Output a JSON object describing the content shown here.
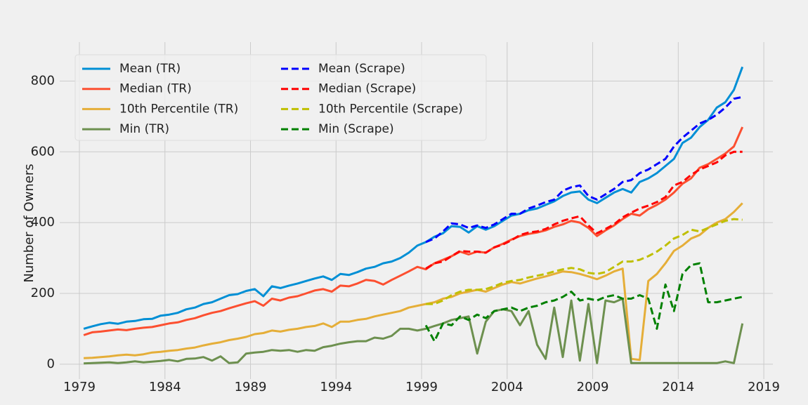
{
  "chart_data": {
    "type": "line",
    "ylabel": "Number of Owners",
    "x": [
      1979.25,
      1979.75,
      1980.25,
      1980.75,
      1981.25,
      1981.75,
      1982.25,
      1982.75,
      1983.25,
      1983.75,
      1984.25,
      1984.75,
      1985.25,
      1985.75,
      1986.25,
      1986.75,
      1987.25,
      1987.75,
      1988.25,
      1988.75,
      1989.25,
      1989.75,
      1990.25,
      1990.75,
      1991.25,
      1991.75,
      1992.25,
      1992.75,
      1993.25,
      1993.75,
      1994.25,
      1994.75,
      1995.25,
      1995.75,
      1996.25,
      1996.75,
      1997.25,
      1997.75,
      1998.25,
      1998.75,
      1999.25,
      1999.75,
      2000.25,
      2000.75,
      2001.25,
      2001.75,
      2002.25,
      2002.75,
      2003.25,
      2003.75,
      2004.25,
      2004.75,
      2005.25,
      2005.75,
      2006.25,
      2006.75,
      2007.25,
      2007.75,
      2008.25,
      2008.75,
      2009.25,
      2009.75,
      2010.25,
      2010.75,
      2011.25,
      2011.75,
      2012.25,
      2012.75,
      2013.25,
      2013.75,
      2014.25,
      2014.75,
      2015.25,
      2015.75,
      2016.25,
      2016.75,
      2017.25,
      2017.75
    ],
    "series": [
      {
        "name": "Mean (TR)",
        "color": "#008fd5",
        "style": "solid",
        "values": [
          100,
          107,
          113,
          117,
          114,
          120,
          122,
          127,
          128,
          137,
          140,
          145,
          155,
          160,
          170,
          175,
          185,
          195,
          198,
          207,
          212,
          192,
          220,
          215,
          222,
          228,
          235,
          242,
          248,
          238,
          255,
          252,
          260,
          270,
          275,
          285,
          290,
          300,
          315,
          335,
          345,
          360,
          370,
          390,
          388,
          372,
          390,
          380,
          390,
          405,
          420,
          425,
          435,
          440,
          450,
          460,
          475,
          485,
          488,
          465,
          455,
          470,
          485,
          495,
          485,
          515,
          525,
          540,
          560,
          580,
          625,
          640,
          670,
          690,
          725,
          740,
          775,
          840
        ]
      },
      {
        "name": "Median (TR)",
        "color": "#fc4f30",
        "style": "solid",
        "values": [
          82,
          90,
          92,
          95,
          98,
          96,
          100,
          103,
          105,
          110,
          115,
          118,
          125,
          130,
          138,
          145,
          150,
          158,
          165,
          172,
          178,
          165,
          185,
          180,
          188,
          192,
          200,
          208,
          212,
          205,
          222,
          220,
          228,
          238,
          235,
          225,
          238,
          250,
          262,
          275,
          268,
          285,
          295,
          305,
          318,
          310,
          318,
          315,
          330,
          340,
          352,
          362,
          368,
          372,
          378,
          388,
          395,
          405,
          400,
          385,
          362,
          378,
          392,
          410,
          425,
          420,
          438,
          450,
          465,
          485,
          510,
          525,
          555,
          565,
          580,
          595,
          615,
          670
        ]
      },
      {
        "name": "10th Percentile (TR)",
        "color": "#e5ae38",
        "style": "solid",
        "values": [
          17,
          18,
          20,
          22,
          25,
          27,
          25,
          28,
          33,
          35,
          38,
          40,
          44,
          47,
          53,
          58,
          62,
          68,
          72,
          77,
          85,
          88,
          95,
          92,
          97,
          100,
          105,
          108,
          115,
          105,
          120,
          120,
          125,
          128,
          135,
          140,
          145,
          150,
          160,
          165,
          170,
          175,
          185,
          190,
          200,
          205,
          210,
          205,
          215,
          225,
          232,
          228,
          235,
          242,
          248,
          255,
          262,
          260,
          255,
          248,
          240,
          250,
          262,
          270,
          15,
          12,
          235,
          255,
          285,
          320,
          335,
          355,
          365,
          385,
          400,
          410,
          430,
          455
        ]
      },
      {
        "name": "Min (TR)",
        "color": "#6d904f",
        "style": "solid",
        "values": [
          2,
          3,
          4,
          5,
          3,
          5,
          8,
          5,
          7,
          9,
          12,
          8,
          15,
          16,
          20,
          10,
          22,
          3,
          5,
          30,
          33,
          35,
          40,
          38,
          40,
          35,
          40,
          38,
          48,
          52,
          58,
          62,
          65,
          65,
          75,
          72,
          80,
          100,
          100,
          95,
          100,
          108,
          115,
          125,
          130,
          135,
          30,
          120,
          150,
          155,
          150,
          110,
          150,
          55,
          15,
          160,
          20,
          180,
          10,
          170,
          3,
          180,
          175,
          185,
          3,
          3,
          3,
          3,
          3,
          3,
          3,
          3,
          3,
          3,
          3,
          8,
          3,
          115
        ]
      },
      {
        "name": "Mean (Scrape)",
        "color": "#0000ff",
        "style": "dashed",
        "values": [
          null,
          null,
          null,
          null,
          null,
          null,
          null,
          null,
          null,
          null,
          null,
          null,
          null,
          null,
          null,
          null,
          null,
          null,
          null,
          null,
          null,
          null,
          null,
          null,
          null,
          null,
          null,
          null,
          null,
          null,
          null,
          null,
          null,
          null,
          null,
          null,
          null,
          null,
          null,
          null,
          345,
          355,
          375,
          398,
          395,
          385,
          392,
          385,
          395,
          410,
          425,
          425,
          440,
          448,
          458,
          465,
          490,
          500,
          505,
          475,
          465,
          480,
          495,
          515,
          520,
          540,
          550,
          565,
          580,
          615,
          640,
          660,
          680,
          690,
          705,
          725,
          750,
          755
        ]
      },
      {
        "name": "Median (Scrape)",
        "color": "#ff0000",
        "style": "dashed",
        "values": [
          null,
          null,
          null,
          null,
          null,
          null,
          null,
          null,
          null,
          null,
          null,
          null,
          null,
          null,
          null,
          null,
          null,
          null,
          null,
          null,
          null,
          null,
          null,
          null,
          null,
          null,
          null,
          null,
          null,
          null,
          null,
          null,
          null,
          null,
          null,
          null,
          null,
          null,
          null,
          null,
          270,
          285,
          290,
          305,
          320,
          318,
          318,
          315,
          330,
          338,
          350,
          365,
          372,
          375,
          382,
          395,
          405,
          412,
          418,
          392,
          370,
          382,
          395,
          415,
          428,
          440,
          448,
          458,
          472,
          505,
          515,
          535,
          550,
          560,
          570,
          590,
          600,
          600
        ]
      },
      {
        "name": "10th Percentile (Scrape)",
        "color": "#bfbf00",
        "style": "dashed",
        "values": [
          null,
          null,
          null,
          null,
          null,
          null,
          null,
          null,
          null,
          null,
          null,
          null,
          null,
          null,
          null,
          null,
          null,
          null,
          null,
          null,
          null,
          null,
          null,
          null,
          null,
          null,
          null,
          null,
          null,
          null,
          null,
          null,
          null,
          null,
          null,
          null,
          null,
          null,
          null,
          null,
          170,
          170,
          180,
          195,
          205,
          210,
          210,
          212,
          220,
          230,
          235,
          238,
          245,
          250,
          255,
          262,
          268,
          272,
          268,
          258,
          255,
          260,
          275,
          290,
          290,
          295,
          305,
          318,
          335,
          355,
          365,
          380,
          375,
          385,
          395,
          405,
          410,
          408
        ]
      },
      {
        "name": "Min (Scrape)",
        "color": "#008000",
        "style": "dashed",
        "values": [
          null,
          null,
          null,
          null,
          null,
          null,
          null,
          null,
          null,
          null,
          null,
          null,
          null,
          null,
          null,
          null,
          null,
          null,
          null,
          null,
          null,
          null,
          null,
          null,
          null,
          null,
          null,
          null,
          null,
          null,
          null,
          null,
          null,
          null,
          null,
          null,
          null,
          null,
          null,
          null,
          110,
          65,
          115,
          110,
          135,
          125,
          140,
          130,
          150,
          155,
          160,
          150,
          160,
          165,
          175,
          180,
          190,
          205,
          180,
          185,
          180,
          190,
          195,
          185,
          185,
          195,
          185,
          100,
          225,
          150,
          255,
          280,
          285,
          175,
          175,
          180,
          185,
          190
        ]
      }
    ],
    "xlim": [
      1977.85,
      2019.53
    ],
    "xticks": [
      1979,
      1984,
      1989,
      1994,
      1999,
      2004,
      2009,
      2014,
      2019
    ],
    "ylim": [
      -42,
      910
    ],
    "yticks": [
      0,
      200,
      400,
      600,
      800
    ],
    "grid": true,
    "legend": "upper left"
  }
}
